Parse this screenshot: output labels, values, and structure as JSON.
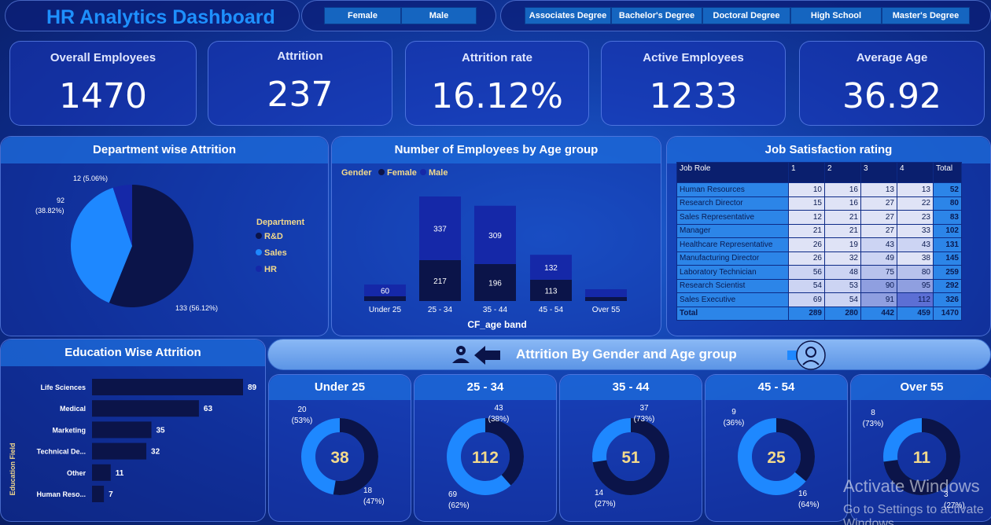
{
  "header": {
    "title": "HR Analytics Dashboard",
    "gender_slicer": [
      "Female",
      "Male"
    ],
    "education_slicer": [
      "Associates Degree",
      "Bachelor's Degree",
      "Doctoral Degree",
      "High School",
      "Master's Degree"
    ]
  },
  "kpis": [
    {
      "label": "Overall Employees",
      "value": "1470"
    },
    {
      "label": "Attrition",
      "value": "237"
    },
    {
      "label": "Attrition rate",
      "value": "16.12%"
    },
    {
      "label": "Active Employees",
      "value": "1233"
    },
    {
      "label": "Average Age",
      "value": "36.92"
    }
  ],
  "colors": {
    "dark": "#0b1449",
    "light": "#1e88ff",
    "mid": "#1528a8",
    "gold": "#f2d98c"
  },
  "dept": {
    "title": "Department wise Attrition",
    "legend_title": "Department",
    "legend": [
      "R&D",
      "Sales",
      "HR"
    ]
  },
  "age_chart": {
    "title": "Number of Employees by Age group",
    "legend_title": "Gender",
    "legend": [
      "Female",
      "Male"
    ],
    "xlabel": "CF_age band"
  },
  "job_sat": {
    "title": "Job Satisfaction rating",
    "columns": [
      "Job Role",
      "1",
      "2",
      "3",
      "4",
      "Total"
    ],
    "rows": [
      [
        "Human Resources",
        "10",
        "16",
        "13",
        "13",
        "52"
      ],
      [
        "Research Director",
        "15",
        "16",
        "27",
        "22",
        "80"
      ],
      [
        "Sales Representative",
        "12",
        "21",
        "27",
        "23",
        "83"
      ],
      [
        "Manager",
        "21",
        "21",
        "27",
        "33",
        "102"
      ],
      [
        "Healthcare Representative",
        "26",
        "19",
        "43",
        "43",
        "131"
      ],
      [
        "Manufacturing Director",
        "26",
        "32",
        "49",
        "38",
        "145"
      ],
      [
        "Laboratory Technician",
        "56",
        "48",
        "75",
        "80",
        "259"
      ],
      [
        "Research Scientist",
        "54",
        "53",
        "90",
        "95",
        "292"
      ],
      [
        "Sales Executive",
        "69",
        "54",
        "91",
        "112",
        "326"
      ],
      [
        "Total",
        "289",
        "280",
        "442",
        "459",
        "1470"
      ]
    ]
  },
  "edu": {
    "title": "Education Wise Attrition",
    "ylabel": "Education Field"
  },
  "gender_age": {
    "title": "Attrition By Gender and Age group"
  },
  "chart_data": [
    {
      "type": "pie",
      "title": "Department wise Attrition",
      "categories": [
        "R&D",
        "Sales",
        "HR"
      ],
      "values": [
        133,
        92,
        12
      ],
      "labels": [
        "133 (56.12%)",
        "92 (38.82%)",
        "12 (5.06%)"
      ]
    },
    {
      "type": "bar",
      "title": "Number of Employees by Age group",
      "categories": [
        "Under 25",
        "25 - 34",
        "35 - 44",
        "45 - 54",
        "Over 55"
      ],
      "series": [
        {
          "name": "Female",
          "values": [
            0,
            217,
            196,
            113,
            0
          ]
        },
        {
          "name": "Male",
          "values": [
            60,
            337,
            309,
            132,
            0
          ]
        }
      ],
      "stacked_totals_note": "Under 25 and Over 55 segments are shown without per-gender labels",
      "xlabel": "CF_age band"
    },
    {
      "type": "bar",
      "title": "Education Wise Attrition",
      "categories": [
        "Life Sciences",
        "Medical",
        "Marketing",
        "Technical De...",
        "Other",
        "Human Reso..."
      ],
      "values": [
        89,
        63,
        35,
        32,
        11,
        7
      ],
      "ylabel": "Education Field"
    },
    {
      "type": "pie",
      "title": "Attrition By Gender and Age group",
      "donuts": [
        {
          "name": "Under 25",
          "total": "38",
          "male": 20,
          "male_pct": "(53%)",
          "female": 18,
          "female_pct": "(47%)"
        },
        {
          "name": "25 - 34",
          "total": "112",
          "male": 43,
          "male_pct": "(38%)",
          "female": 69,
          "female_pct": "(62%)"
        },
        {
          "name": "35 - 44",
          "total": "51",
          "male": 37,
          "male_pct": "(73%)",
          "female": 14,
          "female_pct": "(27%)"
        },
        {
          "name": "45 - 54",
          "total": "25",
          "male": 9,
          "male_pct": "(36%)",
          "female": 16,
          "female_pct": "(64%)"
        },
        {
          "name": "Over 55",
          "total": "11",
          "male": 8,
          "male_pct": "(73%)",
          "female": 3,
          "female_pct": "(27%)"
        }
      ]
    }
  ],
  "watermark": {
    "line1": "Activate Windows",
    "line2": "Go to Settings to activate Windows."
  }
}
